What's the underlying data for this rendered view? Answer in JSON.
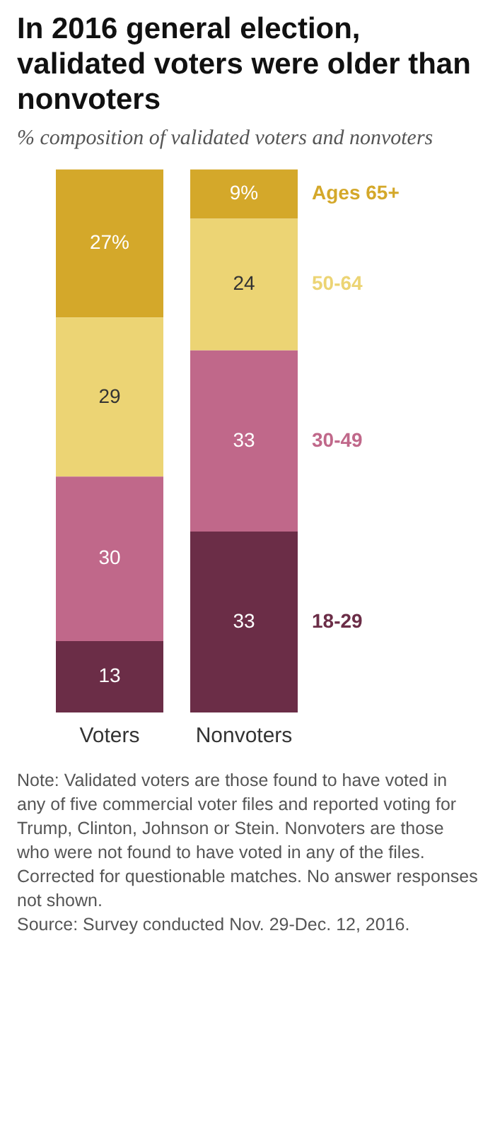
{
  "chart_data": {
    "type": "bar",
    "stacked": true,
    "title": "In 2016 general election, validated voters were older than nonvoters",
    "subtitle": "% composition of validated voters and nonvoters",
    "categories": [
      "Voters",
      "Nonvoters"
    ],
    "series": [
      {
        "name": "18-29",
        "color": "#6b2d47",
        "values": [
          13,
          33
        ],
        "value_labels": [
          "13",
          "33"
        ]
      },
      {
        "name": "30-49",
        "color": "#c0688a",
        "values": [
          30,
          33
        ],
        "value_labels": [
          "30",
          "33"
        ]
      },
      {
        "name": "50-64",
        "color": "#ecd474",
        "values": [
          29,
          24
        ],
        "value_labels": [
          "29",
          "24"
        ]
      },
      {
        "name": "Ages 65+",
        "color": "#d4a82a",
        "values": [
          27,
          9
        ],
        "value_labels": [
          "27%",
          "9%"
        ]
      }
    ],
    "legend": false,
    "grid": false,
    "annotations": [
      "Note: Validated voters are those found to have voted in any of five commercial voter files and reported voting for Trump, Clinton, Johnson or Stein. Nonvoters are those who were not found to have voted in any of the files. Corrected for questionable matches. No answer responses not shown.",
      "Source: Survey conducted Nov. 29-Dec. 12, 2016."
    ]
  }
}
